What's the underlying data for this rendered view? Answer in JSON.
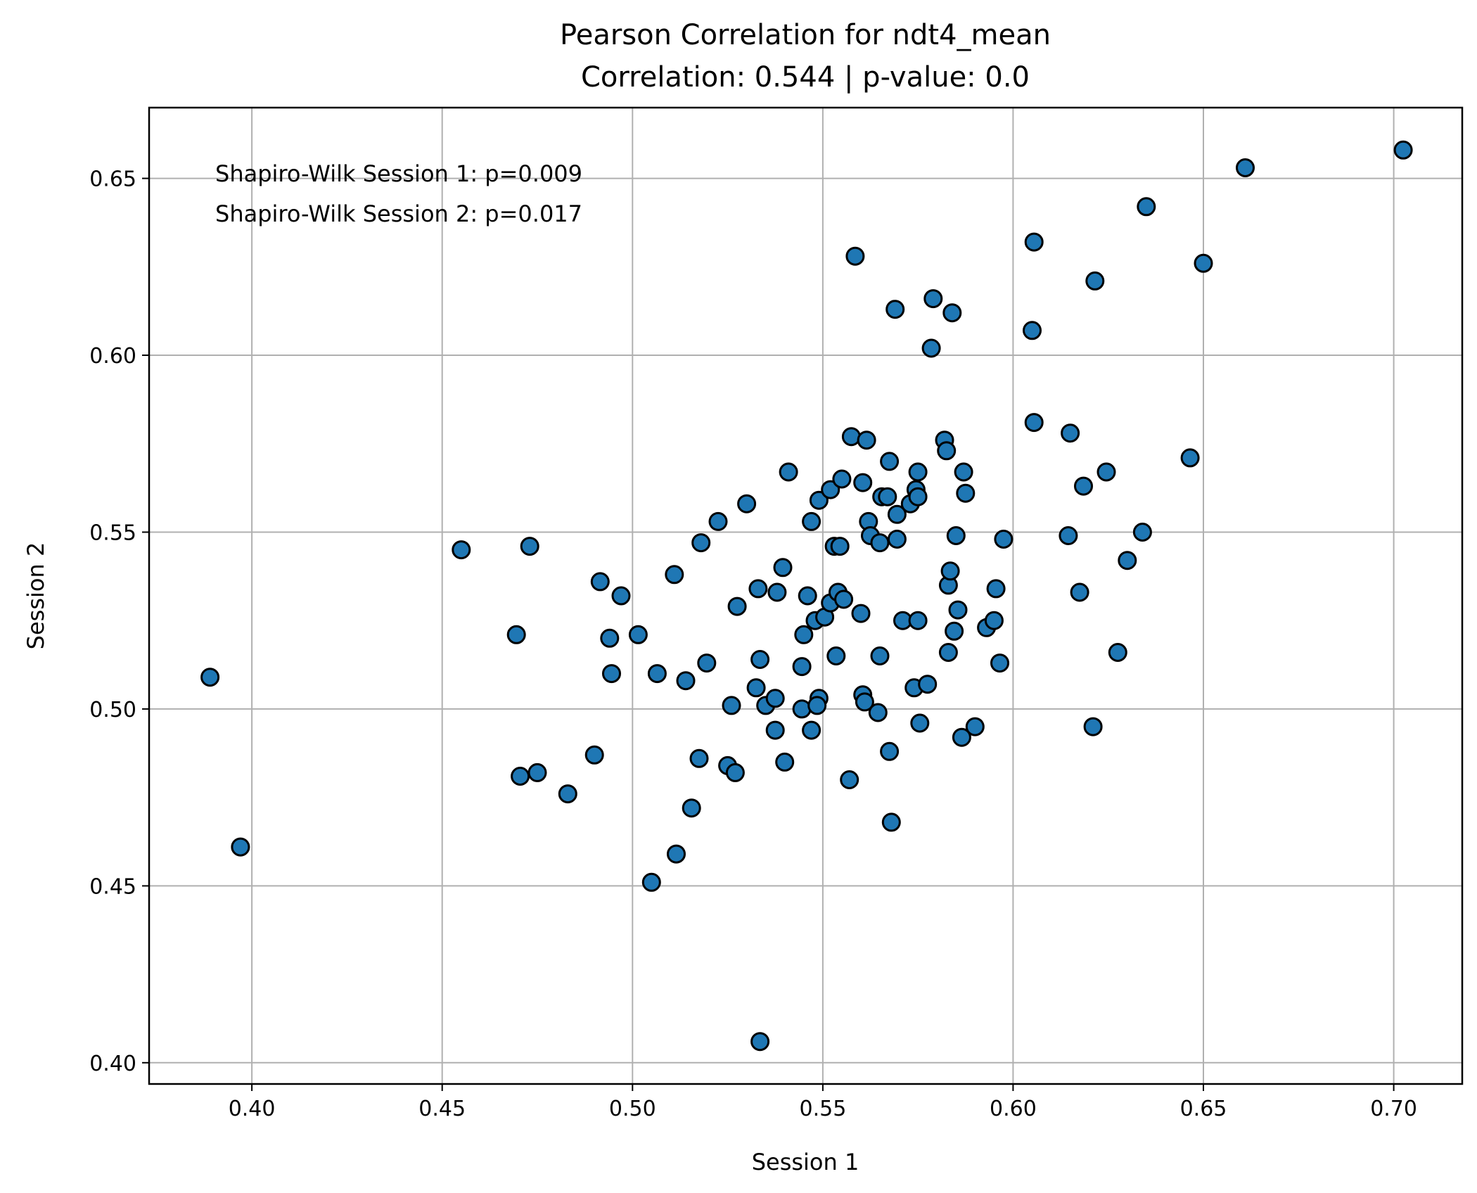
{
  "chart_data": {
    "type": "scatter",
    "title": "Pearson Correlation for ndt4_mean",
    "subtitle": "Correlation: 0.544 | p-value: 0.0",
    "xlabel": "Session 1",
    "ylabel": "Session 2",
    "xlim": [
      0.373,
      0.718
    ],
    "ylim": [
      0.394,
      0.67
    ],
    "x_ticks": [
      0.4,
      0.45,
      0.5,
      0.55,
      0.6,
      0.65,
      0.7
    ],
    "x_tick_labels": [
      "0.40",
      "0.45",
      "0.50",
      "0.55",
      "0.60",
      "0.65",
      "0.70"
    ],
    "y_ticks": [
      0.4,
      0.45,
      0.5,
      0.55,
      0.6,
      0.65
    ],
    "y_tick_labels": [
      "0.40",
      "0.45",
      "0.50",
      "0.55",
      "0.60",
      "0.65"
    ],
    "grid": true,
    "marker_color": "#1f77b4",
    "marker_edge_color": "#000000",
    "annotations": [
      "Shapiro-Wilk Session 1: p=0.009",
      "Shapiro-Wilk Session 2: p=0.017"
    ],
    "points": [
      [
        0.389,
        0.509
      ],
      [
        0.397,
        0.461
      ],
      [
        0.455,
        0.545
      ],
      [
        0.473,
        0.546
      ],
      [
        0.4695,
        0.521
      ],
      [
        0.4705,
        0.481
      ],
      [
        0.475,
        0.482
      ],
      [
        0.483,
        0.476
      ],
      [
        0.49,
        0.487
      ],
      [
        0.4915,
        0.536
      ],
      [
        0.494,
        0.52
      ],
      [
        0.4945,
        0.51
      ],
      [
        0.497,
        0.532
      ],
      [
        0.5015,
        0.521
      ],
      [
        0.505,
        0.451
      ],
      [
        0.5065,
        0.51
      ],
      [
        0.511,
        0.538
      ],
      [
        0.5115,
        0.459
      ],
      [
        0.514,
        0.508
      ],
      [
        0.5155,
        0.472
      ],
      [
        0.5175,
        0.486
      ],
      [
        0.518,
        0.547
      ],
      [
        0.5195,
        0.513
      ],
      [
        0.5225,
        0.553
      ],
      [
        0.525,
        0.484
      ],
      [
        0.526,
        0.501
      ],
      [
        0.527,
        0.482
      ],
      [
        0.5275,
        0.529
      ],
      [
        0.53,
        0.558
      ],
      [
        0.5325,
        0.506
      ],
      [
        0.533,
        0.534
      ],
      [
        0.5335,
        0.514
      ],
      [
        0.535,
        0.501
      ],
      [
        0.5335,
        0.406
      ],
      [
        0.5375,
        0.503
      ],
      [
        0.5375,
        0.494
      ],
      [
        0.538,
        0.533
      ],
      [
        0.5395,
        0.54
      ],
      [
        0.54,
        0.485
      ],
      [
        0.541,
        0.567
      ],
      [
        0.5445,
        0.512
      ],
      [
        0.5445,
        0.5
      ],
      [
        0.545,
        0.521
      ],
      [
        0.546,
        0.532
      ],
      [
        0.547,
        0.494
      ],
      [
        0.547,
        0.553
      ],
      [
        0.548,
        0.525
      ],
      [
        0.549,
        0.559
      ],
      [
        0.549,
        0.503
      ],
      [
        0.5485,
        0.501
      ],
      [
        0.5505,
        0.526
      ],
      [
        0.552,
        0.53
      ],
      [
        0.552,
        0.562
      ],
      [
        0.553,
        0.546
      ],
      [
        0.5535,
        0.515
      ],
      [
        0.554,
        0.533
      ],
      [
        0.5545,
        0.546
      ],
      [
        0.555,
        0.565
      ],
      [
        0.5555,
        0.531
      ],
      [
        0.557,
        0.48
      ],
      [
        0.5575,
        0.577
      ],
      [
        0.5585,
        0.628
      ],
      [
        0.56,
        0.527
      ],
      [
        0.5605,
        0.564
      ],
      [
        0.5605,
        0.504
      ],
      [
        0.561,
        0.502
      ],
      [
        0.5615,
        0.576
      ],
      [
        0.562,
        0.553
      ],
      [
        0.5625,
        0.549
      ],
      [
        0.5645,
        0.499
      ],
      [
        0.565,
        0.515
      ],
      [
        0.565,
        0.547
      ],
      [
        0.5655,
        0.56
      ],
      [
        0.567,
        0.56
      ],
      [
        0.5675,
        0.488
      ],
      [
        0.5675,
        0.57
      ],
      [
        0.568,
        0.468
      ],
      [
        0.569,
        0.613
      ],
      [
        0.5695,
        0.555
      ],
      [
        0.5695,
        0.548
      ],
      [
        0.571,
        0.525
      ],
      [
        0.573,
        0.558
      ],
      [
        0.574,
        0.506
      ],
      [
        0.5745,
        0.562
      ],
      [
        0.575,
        0.567
      ],
      [
        0.575,
        0.56
      ],
      [
        0.575,
        0.525
      ],
      [
        0.5755,
        0.496
      ],
      [
        0.5775,
        0.507
      ],
      [
        0.5785,
        0.602
      ],
      [
        0.579,
        0.616
      ],
      [
        0.582,
        0.576
      ],
      [
        0.5825,
        0.573
      ],
      [
        0.583,
        0.516
      ],
      [
        0.583,
        0.535
      ],
      [
        0.5835,
        0.539
      ],
      [
        0.584,
        0.612
      ],
      [
        0.5845,
        0.522
      ],
      [
        0.585,
        0.549
      ],
      [
        0.5855,
        0.528
      ],
      [
        0.5865,
        0.492
      ],
      [
        0.587,
        0.567
      ],
      [
        0.5875,
        0.561
      ],
      [
        0.59,
        0.495
      ],
      [
        0.593,
        0.523
      ],
      [
        0.595,
        0.525
      ],
      [
        0.5955,
        0.534
      ],
      [
        0.5965,
        0.513
      ],
      [
        0.5975,
        0.548
      ],
      [
        0.605,
        0.607
      ],
      [
        0.6055,
        0.632
      ],
      [
        0.6055,
        0.581
      ],
      [
        0.6145,
        0.549
      ],
      [
        0.615,
        0.578
      ],
      [
        0.6175,
        0.533
      ],
      [
        0.6185,
        0.563
      ],
      [
        0.621,
        0.495
      ],
      [
        0.6215,
        0.621
      ],
      [
        0.6245,
        0.567
      ],
      [
        0.6275,
        0.516
      ],
      [
        0.63,
        0.542
      ],
      [
        0.634,
        0.55
      ],
      [
        0.635,
        0.642
      ],
      [
        0.6465,
        0.571
      ],
      [
        0.65,
        0.626
      ],
      [
        0.661,
        0.653
      ],
      [
        0.7025,
        0.658
      ]
    ]
  }
}
